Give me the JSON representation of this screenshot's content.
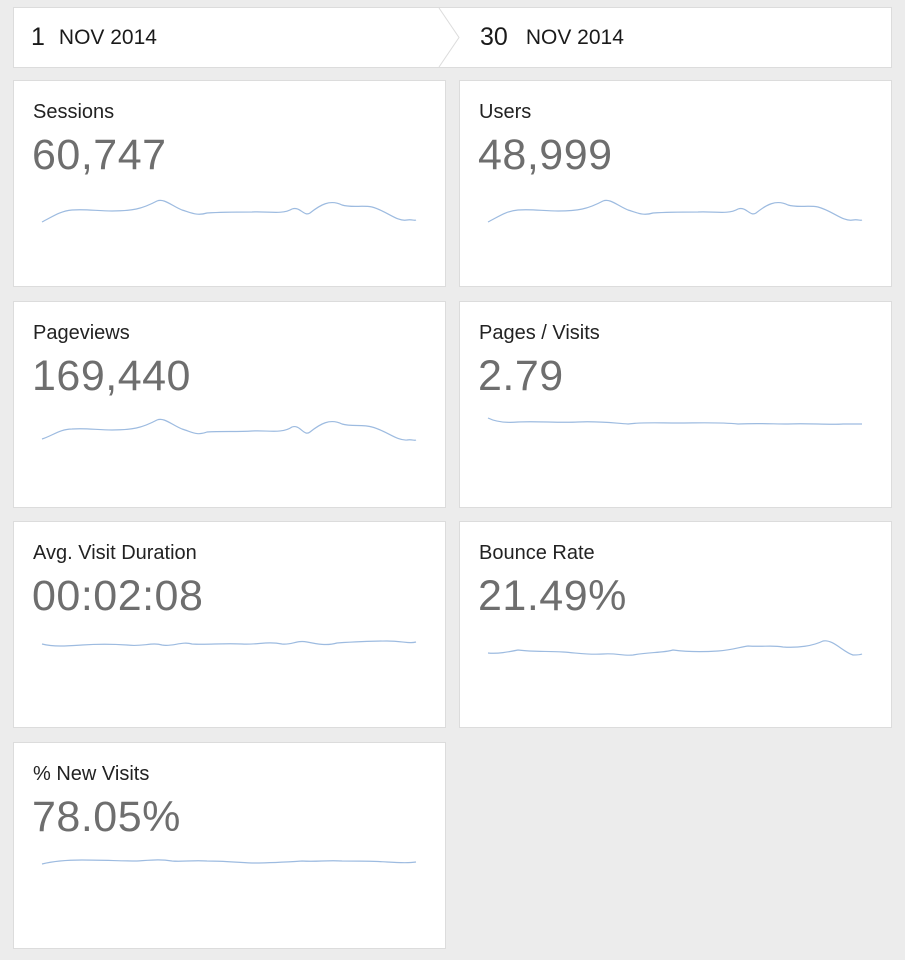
{
  "date_range": {
    "start": {
      "day": "1",
      "month_year": "NOV 2014"
    },
    "end": {
      "day": "30",
      "month_year": "NOV 2014"
    }
  },
  "metrics": [
    {
      "label": "Sessions",
      "value": "60,747"
    },
    {
      "label": "Users",
      "value": "48,999"
    },
    {
      "label": "Pageviews",
      "value": "169,440"
    },
    {
      "label": "Pages / Visits",
      "value": "2.79"
    },
    {
      "label": "Avg. Visit Duration",
      "value": "00:02:08"
    },
    {
      "label": "Bounce Rate",
      "value": "21.49%"
    },
    {
      "label": "% New Visits",
      "value": "78.05%"
    }
  ],
  "colors": {
    "background": "#ececec",
    "card": "#ffffff",
    "sparkline": "#9dbbe0",
    "value_text": "#6e6e6e"
  }
}
